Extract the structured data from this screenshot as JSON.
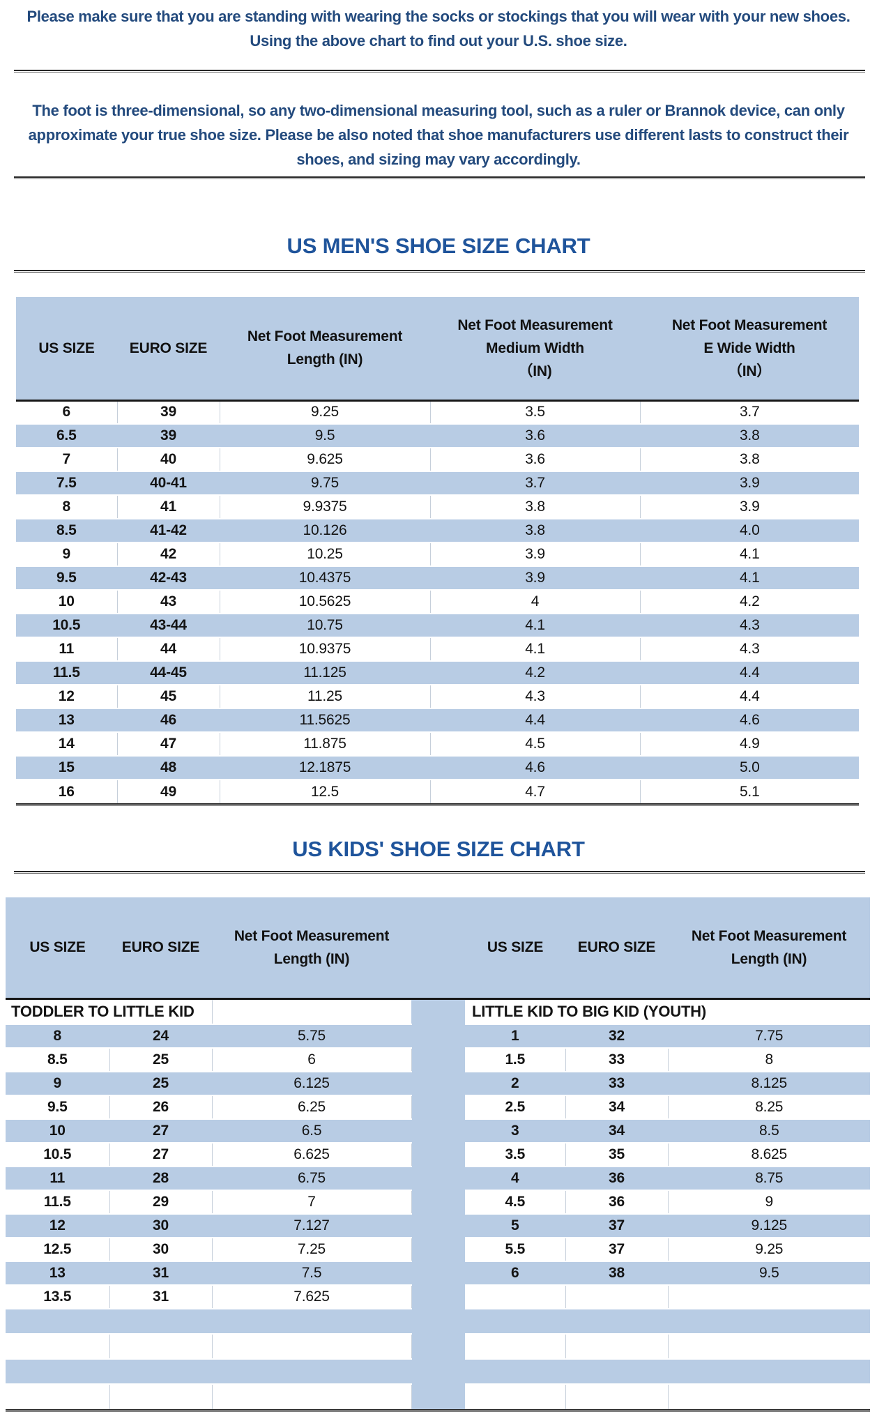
{
  "intro": {
    "note_lines": [
      "Please make sure that you are standing with wearing the socks or stockings that you will wear with your new shoes.",
      "Using the above chart to find out your U.S. shoe size."
    ],
    "disclaimer_lines": [
      "The foot is three-dimensional, so any two-dimensional measuring tool, such as a ruler or Brannok device, can only",
      "approximate your true shoe size. Please be also noted that shoe manufacturers use different lasts to construct their",
      "shoes, and sizing may vary accordingly."
    ]
  },
  "colors": {
    "row_stripe": "#b8cce4",
    "heading_text": "#1f549b",
    "note_text": "#234a7d"
  },
  "mens_chart": {
    "title": "US MEN'S SHOE SIZE CHART",
    "columns": [
      [
        "US SIZE"
      ],
      [
        "EURO SIZE"
      ],
      [
        "Net Foot Measurement",
        "Length (IN)"
      ],
      [
        "Net Foot Measurement",
        "Medium Width",
        "（IN)"
      ],
      [
        "Net Foot Measurement",
        "E Wide Width",
        "（IN）"
      ]
    ],
    "rows": [
      [
        "6",
        "39",
        "9.25",
        "3.5",
        "3.7"
      ],
      [
        "6.5",
        "39",
        "9.5",
        "3.6",
        "3.8"
      ],
      [
        "7",
        "40",
        "9.625",
        "3.6",
        "3.8"
      ],
      [
        "7.5",
        "40-41",
        "9.75",
        "3.7",
        "3.9"
      ],
      [
        "8",
        "41",
        "9.9375",
        "3.8",
        "3.9"
      ],
      [
        "8.5",
        "41-42",
        "10.126",
        "3.8",
        "4.0"
      ],
      [
        "9",
        "42",
        "10.25",
        "3.9",
        "4.1"
      ],
      [
        "9.5",
        "42-43",
        "10.4375",
        "3.9",
        "4.1"
      ],
      [
        "10",
        "43",
        "10.5625",
        "4",
        "4.2"
      ],
      [
        "10.5",
        "43-44",
        "10.75",
        "4.1",
        "4.3"
      ],
      [
        "11",
        "44",
        "10.9375",
        "4.1",
        "4.3"
      ],
      [
        "11.5",
        "44-45",
        "11.125",
        "4.2",
        "4.4"
      ],
      [
        "12",
        "45",
        "11.25",
        "4.3",
        "4.4"
      ],
      [
        "13",
        "46",
        "11.5625",
        "4.4",
        "4.6"
      ],
      [
        "14",
        "47",
        "11.875",
        "4.5",
        "4.9"
      ],
      [
        "15",
        "48",
        "12.1875",
        "4.6",
        "5.0"
      ],
      [
        "16",
        "49",
        "12.5",
        "4.7",
        "5.1"
      ]
    ]
  },
  "kids_chart": {
    "title": "US KIDS' SHOE SIZE CHART",
    "left": {
      "columns": [
        [
          "US SIZE"
        ],
        [
          "EURO SIZE"
        ],
        [
          "Net Foot Measurement",
          "Length (IN)"
        ]
      ],
      "group_label": "TODDLER TO LITTLE KID",
      "rows": [
        [
          "8",
          "24",
          "5.75"
        ],
        [
          "8.5",
          "25",
          "6"
        ],
        [
          "9",
          "25",
          "6.125"
        ],
        [
          "9.5",
          "26",
          "6.25"
        ],
        [
          "10",
          "27",
          "6.5"
        ],
        [
          "10.5",
          "27",
          "6.625"
        ],
        [
          "11",
          "28",
          "6.75"
        ],
        [
          "11.5",
          "29",
          "7"
        ],
        [
          "12",
          "30",
          "7.127"
        ],
        [
          "12.5",
          "30",
          "7.25"
        ],
        [
          "13",
          "31",
          "7.5"
        ],
        [
          "13.5",
          "31",
          "7.625"
        ],
        [
          "",
          "",
          ""
        ],
        [
          "",
          "",
          ""
        ],
        [
          "",
          "",
          ""
        ],
        [
          "",
          "",
          ""
        ]
      ]
    },
    "right": {
      "columns": [
        [
          "US SIZE"
        ],
        [
          "EURO SIZE"
        ],
        [
          "Net Foot Measurement",
          "Length (IN)"
        ]
      ],
      "group_label": "LITTLE KID TO BIG KID (YOUTH)",
      "rows": [
        [
          "1",
          "32",
          "7.75"
        ],
        [
          "1.5",
          "33",
          "8"
        ],
        [
          "2",
          "33",
          "8.125"
        ],
        [
          "2.5",
          "34",
          "8.25"
        ],
        [
          "3",
          "34",
          "8.5"
        ],
        [
          "3.5",
          "35",
          "8.625"
        ],
        [
          "4",
          "36",
          "8.75"
        ],
        [
          "4.5",
          "36",
          "9"
        ],
        [
          "5",
          "37",
          "9.125"
        ],
        [
          "5.5",
          "37",
          "9.25"
        ],
        [
          "6",
          "38",
          "9.5"
        ],
        [
          "",
          "",
          ""
        ],
        [
          "",
          "",
          ""
        ],
        [
          "",
          "",
          ""
        ],
        [
          "",
          "",
          ""
        ],
        [
          "",
          "",
          ""
        ]
      ]
    }
  }
}
